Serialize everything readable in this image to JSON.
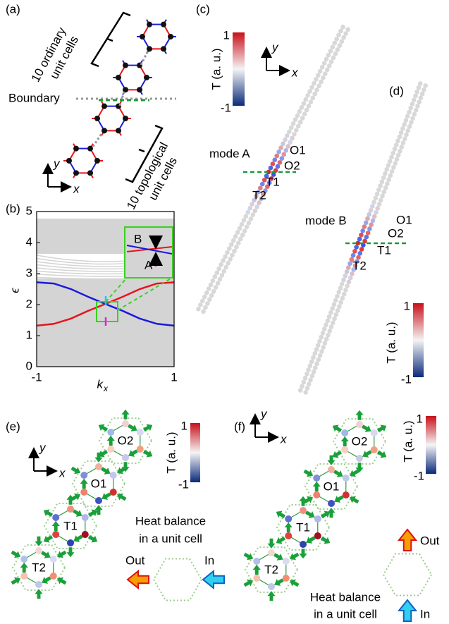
{
  "panels": {
    "a": {
      "label": "(a)",
      "ordinary": [
        "10 ordinary",
        "unit cells"
      ],
      "boundary": "Boundary",
      "topological": [
        "10 topological",
        "unit cells"
      ],
      "axis_y": "y",
      "axis_x": "x"
    },
    "b": {
      "label": "(b)",
      "inset_upper": "B",
      "inset_lower": "A"
    },
    "c": {
      "label": "(c)",
      "colorbar_max": 1,
      "colorbar_min": -1,
      "colorbar_label": "T (a. u.)",
      "axis_y": "y",
      "axis_x": "x",
      "mode": "mode A",
      "sites": [
        "O1",
        "O2",
        "T1",
        "T2"
      ]
    },
    "d": {
      "label": "(d)",
      "colorbar_max": 1,
      "colorbar_min": -1,
      "colorbar_label": "T (a. u.)",
      "mode": "mode B",
      "sites": [
        "O1",
        "O2",
        "T1",
        "T2"
      ]
    },
    "e": {
      "label": "(e)",
      "colorbar_max": 1,
      "colorbar_min": -1,
      "colorbar_label": "T (a. u.)",
      "axis_y": "y",
      "axis_x": "x",
      "cells": [
        "O2",
        "O1",
        "T1",
        "T2"
      ],
      "balance": [
        "Heat balance",
        "in a unit cell"
      ],
      "out": "Out",
      "in": "In"
    },
    "f": {
      "label": "(f)",
      "colorbar_max": 1,
      "colorbar_min": -1,
      "colorbar_label": "T (a. u.)",
      "axis_y": "y",
      "axis_x": "x",
      "cells": [
        "O2",
        "O1",
        "T1",
        "T2"
      ],
      "balance": [
        "Heat balance",
        "in a unit cell"
      ],
      "out": "Out",
      "in": "In"
    }
  },
  "chart_data": {
    "type": "line",
    "ylabel": "ϵ",
    "xlabel": "k",
    "xlabel_subscript": "x",
    "x": [
      -1,
      -0.75,
      -0.5,
      -0.25,
      0,
      0.25,
      0.5,
      0.75,
      1
    ],
    "series": [
      {
        "color": "#e8141c",
        "values": [
          1.32,
          1.38,
          1.55,
          1.8,
          2.02,
          2.25,
          2.5,
          2.68,
          2.72
        ]
      },
      {
        "color": "#1a1adc",
        "values": [
          2.72,
          2.68,
          2.5,
          2.25,
          2.02,
          1.8,
          1.55,
          1.38,
          1.32
        ]
      }
    ],
    "xlim": [
      -1,
      1
    ],
    "xticks": [
      -1,
      1
    ],
    "ylim": [
      0,
      5
    ],
    "yticks": [
      0,
      1,
      2,
      3,
      4,
      5
    ]
  }
}
